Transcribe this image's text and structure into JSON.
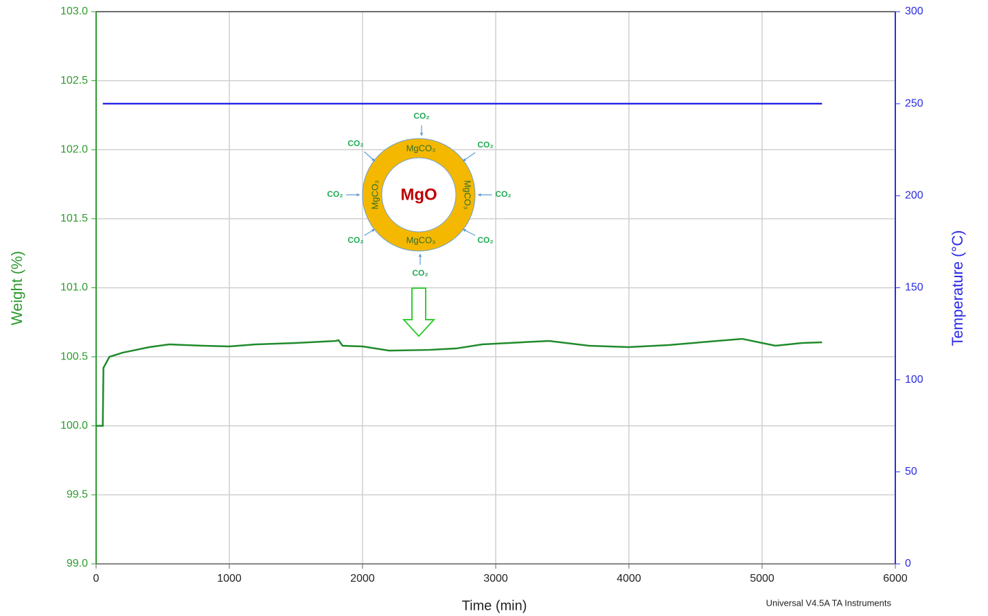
{
  "chart_data": {
    "type": "line",
    "xlabel": "Time (min)",
    "ylabel": "Weight (%)",
    "y2label": "Temperature (°C)",
    "source_note": "Universal V4.5A TA Instruments",
    "xlim": [
      0,
      6000
    ],
    "xticks": [
      0,
      1000,
      2000,
      3000,
      4000,
      5000,
      6000
    ],
    "ylim": [
      99,
      103
    ],
    "yticks": [
      {
        "value": 99,
        "label": "99.0"
      },
      99.5,
      {
        "value": 100,
        "label": "100.0"
      },
      100.5,
      {
        "value": 101,
        "label": "101.0"
      },
      101.5,
      {
        "value": 102,
        "label": "102.0"
      },
      102.5,
      {
        "value": 103,
        "label": "103.0"
      }
    ],
    "y2lim": [
      0,
      300
    ],
    "y2ticks": [
      0,
      50,
      100,
      150,
      200,
      250,
      300
    ],
    "grid": true,
    "series": [
      {
        "color": "#1e8a2a",
        "axis": "y",
        "x": [
          0,
          50,
          55,
          100,
          200,
          400,
          550,
          800,
          1000,
          1200,
          1500,
          1800,
          1820,
          1850,
          2000,
          2200,
          2500,
          2700,
          2900,
          3200,
          3400,
          3700,
          4000,
          4300,
          4600,
          4850,
          5000,
          5100,
          5300,
          5450
        ],
        "values": [
          100.0,
          100.0,
          100.42,
          100.5,
          100.53,
          100.57,
          100.59,
          100.58,
          100.575,
          100.59,
          100.6,
          100.615,
          100.62,
          100.58,
          100.575,
          100.545,
          100.55,
          100.56,
          100.59,
          100.605,
          100.615,
          100.58,
          100.57,
          100.585,
          100.61,
          100.63,
          100.6,
          100.58,
          100.6,
          100.605
        ]
      },
      {
        "color": "#2a2ae6",
        "axis": "y2",
        "x": [
          50,
          5450
        ],
        "values": [
          250,
          250
        ]
      }
    ],
    "inset": {
      "core": "MgO",
      "shell": [
        "MgCO₃",
        "MgCO₃",
        "MgCO₃",
        "MgCO₃"
      ],
      "gas": [
        "CO₂",
        "CO₂",
        "CO₂",
        "CO₂",
        "CO₂",
        "CO₂",
        "CO₂",
        "CO₂"
      ]
    }
  }
}
